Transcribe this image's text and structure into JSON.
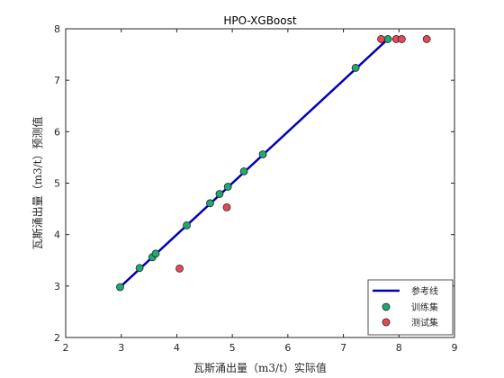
{
  "chart_data": {
    "type": "scatter",
    "title": "HPO-XGBoost",
    "xlabel": "瓦斯涌出量（m3/t）实际值",
    "ylabel": "瓦斯涌出量（m3/t）预测值",
    "xlim": [
      2,
      9
    ],
    "ylim": [
      2,
      8
    ],
    "xticks": [
      2,
      3,
      4,
      5,
      6,
      7,
      8,
      9
    ],
    "yticks": [
      2,
      3,
      4,
      5,
      6,
      7,
      8
    ],
    "grid": false,
    "legend_position": "bottom-right",
    "reference_line": {
      "name": "参考线",
      "x": [
        2.98,
        7.8
      ],
      "y": [
        2.98,
        7.8
      ],
      "color": "#0000b8"
    },
    "series": [
      {
        "name": "训练集",
        "color": "#1fa774",
        "points": [
          {
            "x": 2.98,
            "y": 2.98
          },
          {
            "x": 3.33,
            "y": 3.35
          },
          {
            "x": 3.56,
            "y": 3.56
          },
          {
            "x": 3.62,
            "y": 3.63
          },
          {
            "x": 4.18,
            "y": 4.18
          },
          {
            "x": 4.6,
            "y": 4.61
          },
          {
            "x": 4.77,
            "y": 4.79
          },
          {
            "x": 4.92,
            "y": 4.93
          },
          {
            "x": 5.21,
            "y": 5.23
          },
          {
            "x": 5.55,
            "y": 5.56
          },
          {
            "x": 7.22,
            "y": 7.24
          },
          {
            "x": 7.8,
            "y": 7.8
          }
        ]
      },
      {
        "name": "测试集",
        "color": "#e84855",
        "points": [
          {
            "x": 4.05,
            "y": 3.34
          },
          {
            "x": 4.9,
            "y": 4.53
          },
          {
            "x": 7.68,
            "y": 7.8
          },
          {
            "x": 7.95,
            "y": 7.8
          },
          {
            "x": 8.05,
            "y": 7.8
          },
          {
            "x": 8.5,
            "y": 7.8
          }
        ]
      }
    ]
  }
}
